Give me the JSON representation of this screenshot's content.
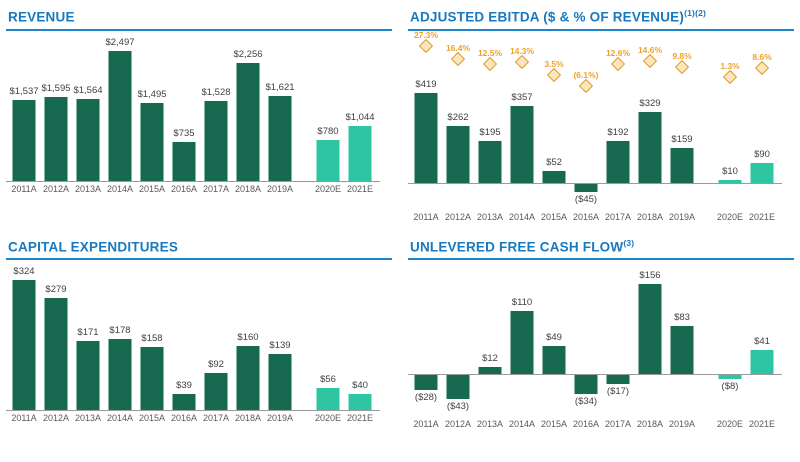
{
  "colors": {
    "actual_bar": "#176a50",
    "estimate_bar": "#2ec5a2",
    "title_blue": "#1879c0",
    "diamond_fill": "#fbe7bd",
    "diamond_border": "#e0992f",
    "pct_text": "#f0a22a",
    "axis_gray": "#9b9b9b"
  },
  "chart_data": [
    {
      "id": "revenue",
      "type": "bar",
      "title": "REVENUE",
      "title_sup": "",
      "categories": [
        "2011A",
        "2012A",
        "2013A",
        "2014A",
        "2015A",
        "2016A",
        "2017A",
        "2018A",
        "2019A",
        "2020E",
        "2021E"
      ],
      "values": [
        1537,
        1595,
        1564,
        2497,
        1495,
        735,
        1528,
        2256,
        1621,
        780,
        1044
      ],
      "labels": [
        "$1,537",
        "$1,595",
        "$1,564",
        "$2,497",
        "$1,495",
        "$735",
        "$1,528",
        "$2,256",
        "$1,621",
        "$780",
        "$1,044"
      ],
      "estimate_from": 9,
      "ylim": [
        0,
        2497
      ],
      "legend": "none",
      "grid": "off"
    },
    {
      "id": "ebitda",
      "type": "bar",
      "title": "ADJUSTED EBITDA ($ & % OF REVENUE)",
      "title_sup": "(1)(2)",
      "categories": [
        "2011A",
        "2012A",
        "2013A",
        "2014A",
        "2015A",
        "2016A",
        "2017A",
        "2018A",
        "2019A",
        "2020E",
        "2021E"
      ],
      "values": [
        419,
        262,
        195,
        357,
        52,
        -45,
        192,
        329,
        159,
        10,
        90
      ],
      "labels": [
        "$419",
        "$262",
        "$195",
        "$357",
        "$52",
        "($45)",
        "$192",
        "$329",
        "$159",
        "$10",
        "$90"
      ],
      "pct_values": [
        27.3,
        16.4,
        12.5,
        14.3,
        3.5,
        -6.1,
        12.6,
        14.6,
        9.8,
        1.3,
        8.6
      ],
      "pct_labels": [
        "27.3%",
        "16.4%",
        "12.5%",
        "14.3%",
        "3.5%",
        "(6.1%)",
        "12.6%",
        "14.6%",
        "9.8%",
        "1.3%",
        "8.6%"
      ],
      "estimate_from": 9,
      "ylim": [
        -45,
        419
      ],
      "legend": "none",
      "grid": "off"
    },
    {
      "id": "capex",
      "type": "bar",
      "title": "CAPITAL EXPENDITURES",
      "title_sup": "",
      "categories": [
        "2011A",
        "2012A",
        "2013A",
        "2014A",
        "2015A",
        "2016A",
        "2017A",
        "2018A",
        "2019A",
        "2020E",
        "2021E"
      ],
      "values": [
        324,
        279,
        171,
        178,
        158,
        39,
        92,
        160,
        139,
        56,
        40
      ],
      "labels": [
        "$324",
        "$279",
        "$171",
        "$178",
        "$158",
        "$39",
        "$92",
        "$160",
        "$139",
        "$56",
        "$40"
      ],
      "estimate_from": 9,
      "ylim": [
        0,
        324
      ],
      "legend": "none",
      "grid": "off"
    },
    {
      "id": "ufcf",
      "type": "bar",
      "title": "UNLEVERED FREE CASH FLOW",
      "title_sup": "(3)",
      "categories": [
        "2011A",
        "2012A",
        "2013A",
        "2014A",
        "2015A",
        "2016A",
        "2017A",
        "2018A",
        "2019A",
        "2020E",
        "2021E"
      ],
      "values": [
        -28,
        -43,
        12,
        110,
        49,
        -34,
        -17,
        156,
        83,
        -8,
        41
      ],
      "labels": [
        "($28)",
        "($43)",
        "$12",
        "$110",
        "$49",
        "($34)",
        "($17)",
        "$156",
        "$83",
        "($8)",
        "$41"
      ],
      "estimate_from": 9,
      "ylim": [
        -43,
        156
      ],
      "legend": "none",
      "grid": "off"
    }
  ]
}
